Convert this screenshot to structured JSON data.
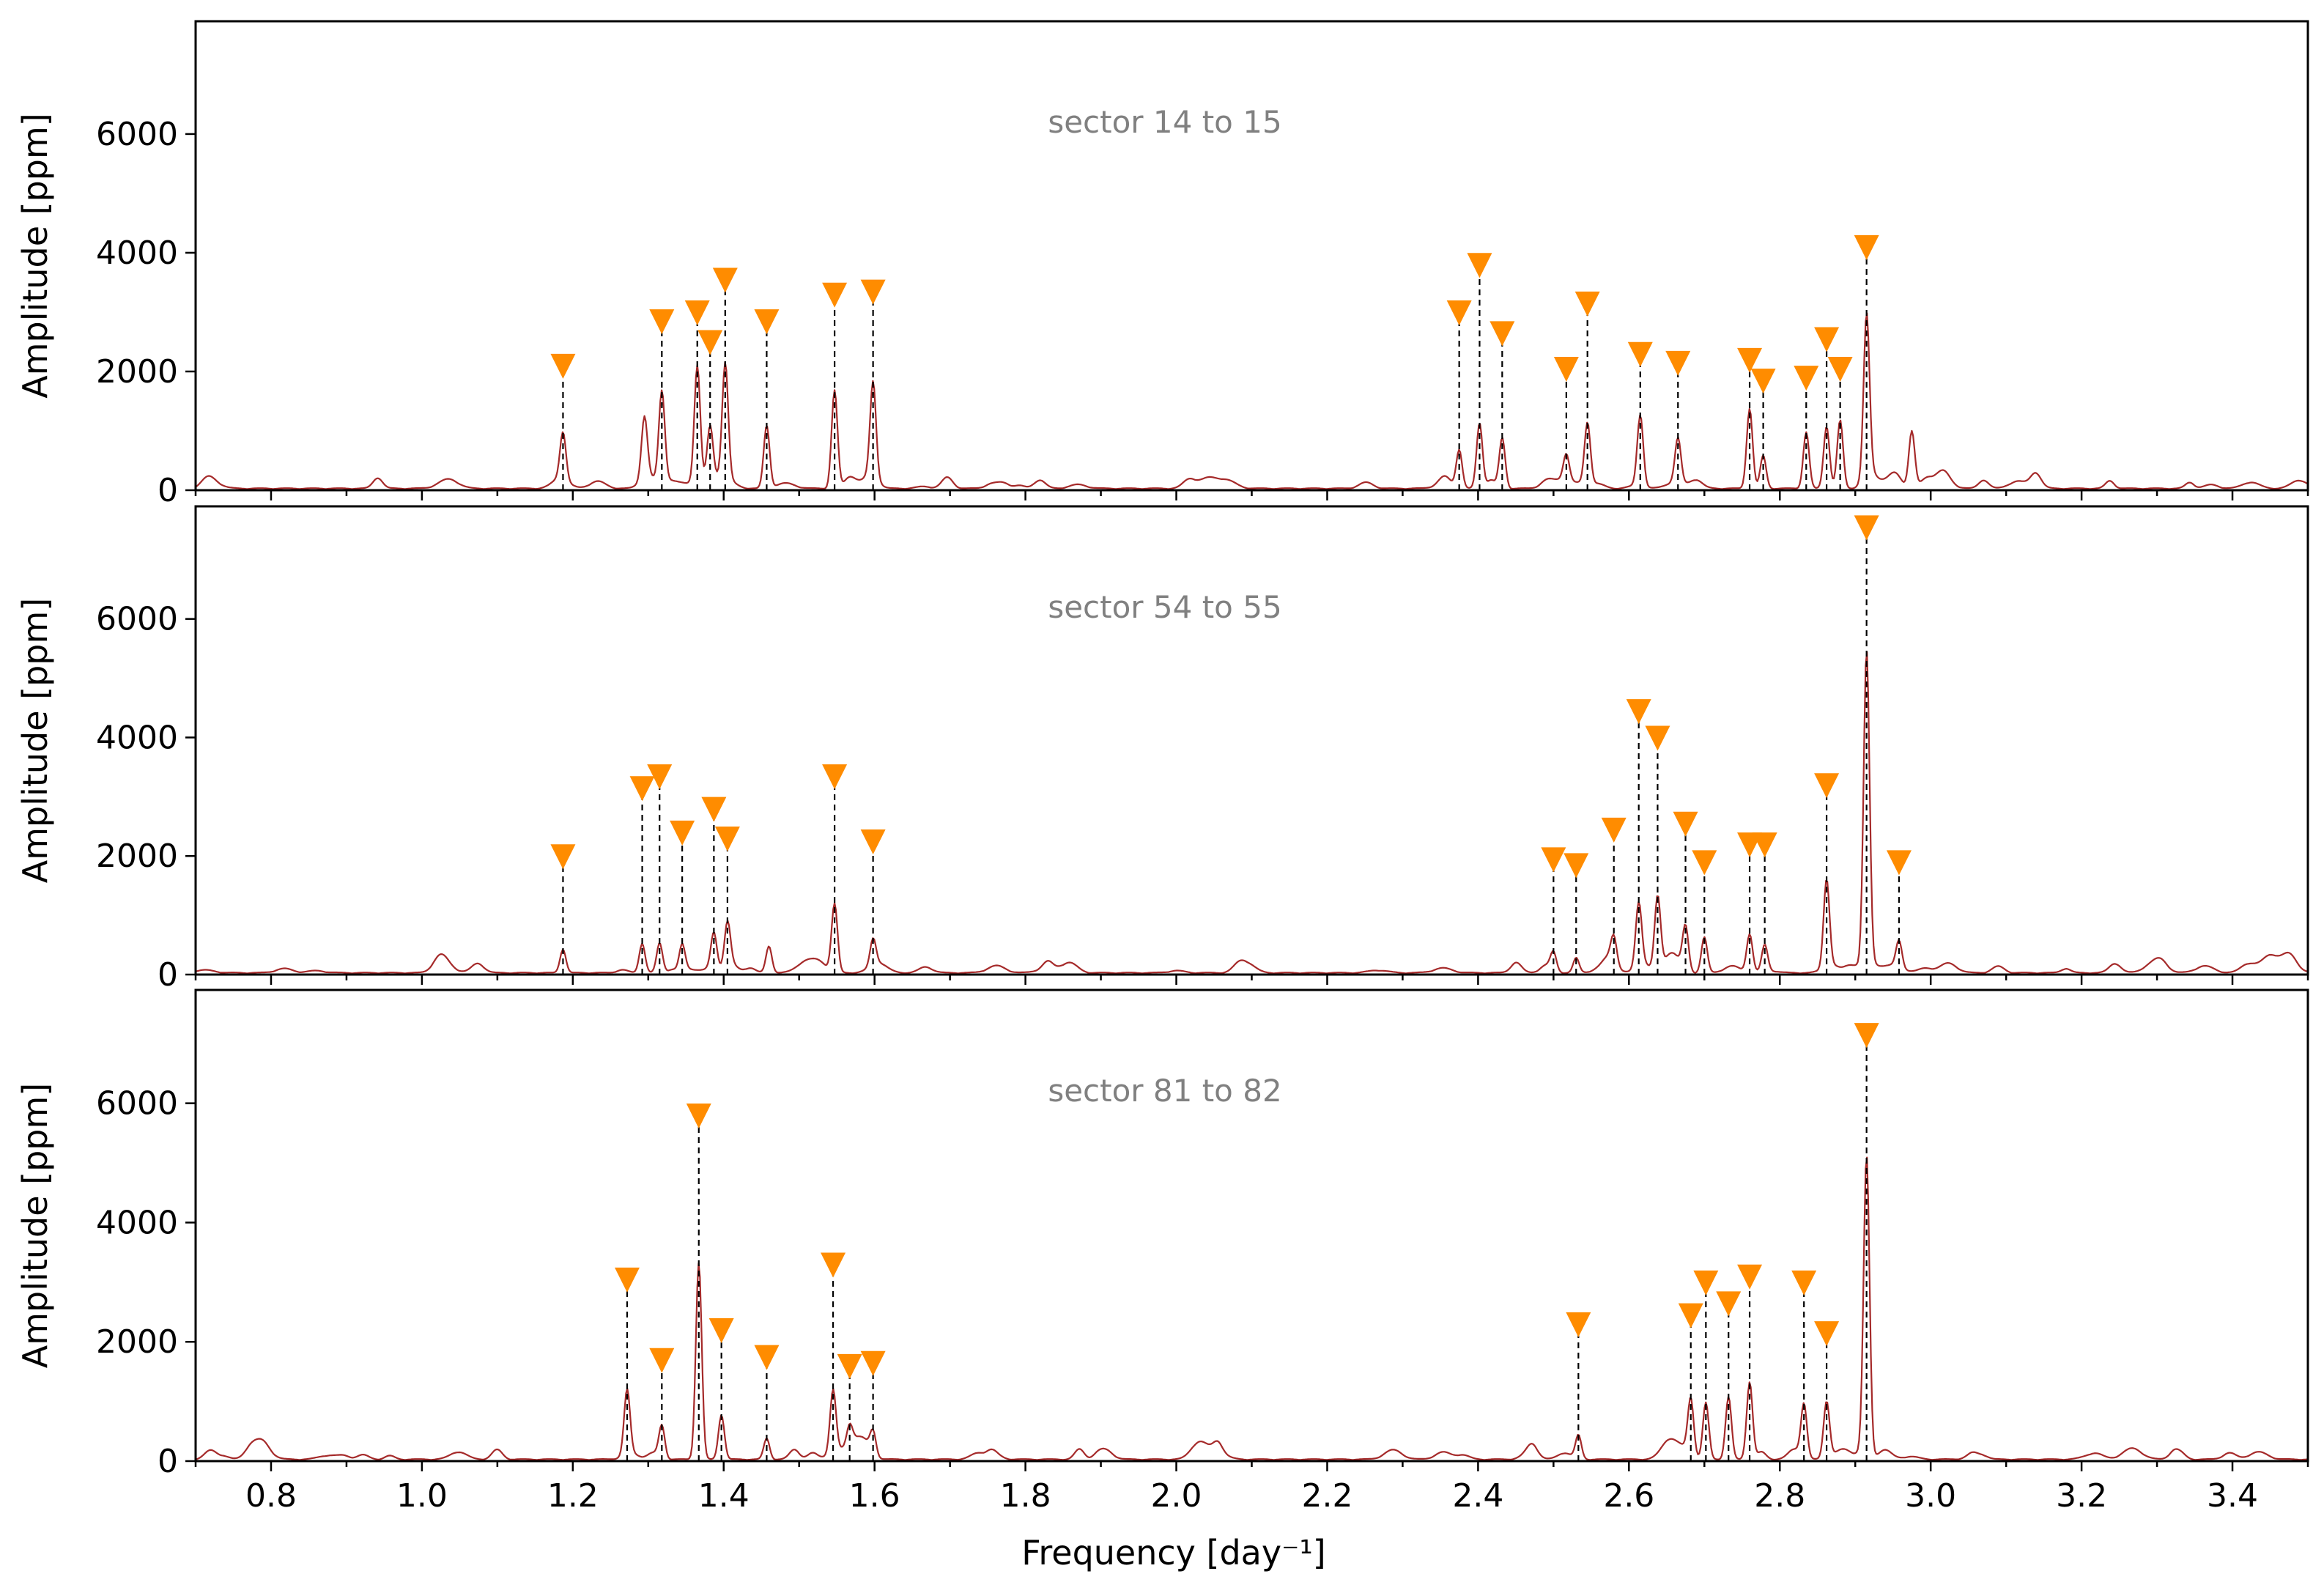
{
  "chart_data": {
    "type": "line",
    "xlabel": "Frequency [day⁻¹]",
    "ylabel": "Amplitude [ppm]",
    "xlim": [
      0.7,
      3.5
    ],
    "ylim": [
      0,
      7900
    ],
    "xticks": [
      0.8,
      1.0,
      1.2,
      1.4,
      1.6,
      1.8,
      2.0,
      2.2,
      2.4,
      2.6,
      2.8,
      3.0,
      3.2,
      3.4
    ],
    "yticks": [
      0,
      2000,
      4000,
      6000
    ],
    "colors": {
      "spectrum": "#a52a2a",
      "marker": "#ff8c00",
      "guide": "#000000",
      "label": "#808080"
    },
    "panels": [
      {
        "label": "sector 14 to 15",
        "peaks": [
          {
            "f": 1.187,
            "a": 800
          },
          {
            "f": 1.295,
            "a": 1050
          },
          {
            "f": 1.318,
            "a": 1500
          },
          {
            "f": 1.365,
            "a": 2000
          },
          {
            "f": 1.382,
            "a": 900
          },
          {
            "f": 1.402,
            "a": 1950
          },
          {
            "f": 1.457,
            "a": 1050
          },
          {
            "f": 1.547,
            "a": 1650
          },
          {
            "f": 1.598,
            "a": 1600
          },
          {
            "f": 2.375,
            "a": 650
          },
          {
            "f": 2.402,
            "a": 1100
          },
          {
            "f": 2.432,
            "a": 850
          },
          {
            "f": 2.517,
            "a": 450
          },
          {
            "f": 2.545,
            "a": 1050
          },
          {
            "f": 2.615,
            "a": 1200
          },
          {
            "f": 2.665,
            "a": 750
          },
          {
            "f": 2.76,
            "a": 1350
          },
          {
            "f": 2.778,
            "a": 550
          },
          {
            "f": 2.835,
            "a": 950
          },
          {
            "f": 2.862,
            "a": 1050
          },
          {
            "f": 2.88,
            "a": 1150
          },
          {
            "f": 2.915,
            "a": 2750
          },
          {
            "f": 2.975,
            "a": 950
          }
        ],
        "markers": [
          {
            "f": 1.187,
            "a": 2050
          },
          {
            "f": 1.318,
            "a": 2800
          },
          {
            "f": 1.365,
            "a": 2950
          },
          {
            "f": 1.382,
            "a": 2450
          },
          {
            "f": 1.402,
            "a": 3500
          },
          {
            "f": 1.457,
            "a": 2800
          },
          {
            "f": 1.547,
            "a": 3250
          },
          {
            "f": 1.598,
            "a": 3300
          },
          {
            "f": 2.375,
            "a": 2950
          },
          {
            "f": 2.402,
            "a": 3750
          },
          {
            "f": 2.432,
            "a": 2600
          },
          {
            "f": 2.517,
            "a": 2000
          },
          {
            "f": 2.545,
            "a": 3100
          },
          {
            "f": 2.615,
            "a": 2250
          },
          {
            "f": 2.665,
            "a": 2100
          },
          {
            "f": 2.76,
            "a": 2150
          },
          {
            "f": 2.778,
            "a": 1800
          },
          {
            "f": 2.835,
            "a": 1850
          },
          {
            "f": 2.862,
            "a": 2500
          },
          {
            "f": 2.88,
            "a": 2000
          },
          {
            "f": 2.915,
            "a": 4050
          }
        ]
      },
      {
        "label": "sector 54 to 55",
        "peaks": [
          {
            "f": 1.187,
            "a": 400
          },
          {
            "f": 1.292,
            "a": 500
          },
          {
            "f": 1.315,
            "a": 500
          },
          {
            "f": 1.345,
            "a": 450
          },
          {
            "f": 1.387,
            "a": 600
          },
          {
            "f": 1.405,
            "a": 750
          },
          {
            "f": 1.46,
            "a": 450
          },
          {
            "f": 1.547,
            "a": 1150
          },
          {
            "f": 1.598,
            "a": 450
          },
          {
            "f": 2.5,
            "a": 300
          },
          {
            "f": 2.53,
            "a": 250
          },
          {
            "f": 2.58,
            "a": 450
          },
          {
            "f": 2.613,
            "a": 1050
          },
          {
            "f": 2.638,
            "a": 1250
          },
          {
            "f": 2.675,
            "a": 750
          },
          {
            "f": 2.7,
            "a": 600
          },
          {
            "f": 2.76,
            "a": 650
          },
          {
            "f": 2.78,
            "a": 450
          },
          {
            "f": 2.862,
            "a": 1550
          },
          {
            "f": 2.915,
            "a": 5300
          },
          {
            "f": 2.958,
            "a": 450
          }
        ],
        "markers": [
          {
            "f": 1.187,
            "a": 1950
          },
          {
            "f": 1.292,
            "a": 3100
          },
          {
            "f": 1.315,
            "a": 3300
          },
          {
            "f": 1.345,
            "a": 2350
          },
          {
            "f": 1.387,
            "a": 2750
          },
          {
            "f": 1.405,
            "a": 2250
          },
          {
            "f": 1.547,
            "a": 3300
          },
          {
            "f": 1.598,
            "a": 2200
          },
          {
            "f": 2.5,
            "a": 1900
          },
          {
            "f": 2.53,
            "a": 1800
          },
          {
            "f": 2.58,
            "a": 2400
          },
          {
            "f": 2.613,
            "a": 4400
          },
          {
            "f": 2.638,
            "a": 3950
          },
          {
            "f": 2.675,
            "a": 2500
          },
          {
            "f": 2.7,
            "a": 1850
          },
          {
            "f": 2.76,
            "a": 2150
          },
          {
            "f": 2.78,
            "a": 2150
          },
          {
            "f": 2.862,
            "a": 3150
          },
          {
            "f": 2.915,
            "a": 7500
          },
          {
            "f": 2.958,
            "a": 1850
          }
        ]
      },
      {
        "label": "sector 81 to 82",
        "peaks": [
          {
            "f": 1.272,
            "a": 1100
          },
          {
            "f": 1.318,
            "a": 550
          },
          {
            "f": 1.367,
            "a": 3300
          },
          {
            "f": 1.397,
            "a": 750
          },
          {
            "f": 1.457,
            "a": 350
          },
          {
            "f": 1.545,
            "a": 1050
          },
          {
            "f": 1.567,
            "a": 350
          },
          {
            "f": 1.598,
            "a": 400
          },
          {
            "f": 2.533,
            "a": 400
          },
          {
            "f": 2.682,
            "a": 950
          },
          {
            "f": 2.702,
            "a": 950
          },
          {
            "f": 2.732,
            "a": 1050
          },
          {
            "f": 2.76,
            "a": 1300
          },
          {
            "f": 2.832,
            "a": 900
          },
          {
            "f": 2.862,
            "a": 950
          },
          {
            "f": 2.915,
            "a": 5000
          }
        ],
        "markers": [
          {
            "f": 1.272,
            "a": 3000
          },
          {
            "f": 1.318,
            "a": 1650
          },
          {
            "f": 1.367,
            "a": 5750
          },
          {
            "f": 1.397,
            "a": 2150
          },
          {
            "f": 1.457,
            "a": 1700
          },
          {
            "f": 1.545,
            "a": 3250
          },
          {
            "f": 1.567,
            "a": 1550
          },
          {
            "f": 1.598,
            "a": 1600
          },
          {
            "f": 2.533,
            "a": 2250
          },
          {
            "f": 2.682,
            "a": 2400
          },
          {
            "f": 2.702,
            "a": 2950
          },
          {
            "f": 2.732,
            "a": 2600
          },
          {
            "f": 2.76,
            "a": 3050
          },
          {
            "f": 2.832,
            "a": 2950
          },
          {
            "f": 2.862,
            "a": 2100
          },
          {
            "f": 2.915,
            "a": 7100
          }
        ]
      }
    ]
  }
}
